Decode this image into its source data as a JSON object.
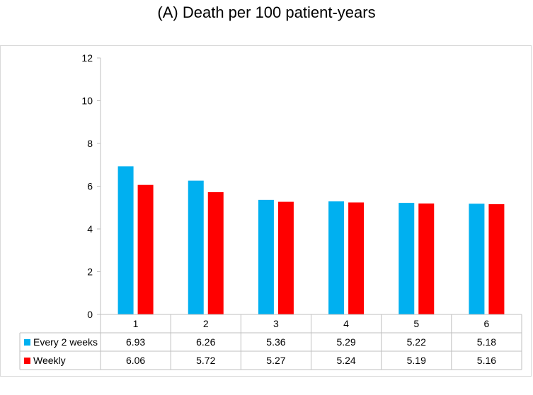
{
  "chart_data": {
    "type": "bar",
    "title": "(A) Death per 100 patient-years",
    "xlabel": "",
    "ylabel": "",
    "ylim": [
      0,
      12
    ],
    "yticks": [
      "0",
      "2",
      "4",
      "6",
      "8",
      "10",
      "12"
    ],
    "categories": [
      "1",
      "2",
      "3",
      "4",
      "5",
      "6"
    ],
    "series": [
      {
        "name": "Every 2 weeks",
        "color": "#00b0f0",
        "values": [
          6.93,
          6.26,
          5.36,
          5.29,
          5.22,
          5.18
        ]
      },
      {
        "name": "Weekly",
        "color": "#ff0000",
        "values": [
          6.06,
          5.72,
          5.27,
          5.24,
          5.19,
          5.16
        ]
      }
    ],
    "data_table": {
      "rows": [
        {
          "label": "Every 2 weeks",
          "values": [
            "6.93",
            "6.26",
            "5.36",
            "5.29",
            "5.22",
            "5.18"
          ]
        },
        {
          "label": "Weekly",
          "values": [
            "6.06",
            "5.72",
            "5.27",
            "5.24",
            "5.19",
            "5.16"
          ]
        }
      ]
    },
    "grid": false,
    "legend": "data-table"
  }
}
